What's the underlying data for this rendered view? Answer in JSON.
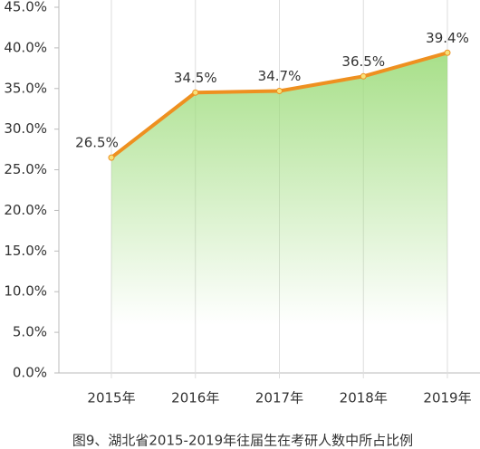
{
  "chart_data": {
    "type": "line",
    "caption": "图9、湖北省2015-2019年往届生在考研人数中所占比例",
    "categories": [
      "2015年",
      "2016年",
      "2017年",
      "2018年",
      "2019年"
    ],
    "values": [
      26.5,
      34.5,
      34.7,
      36.5,
      39.4
    ],
    "value_labels": [
      "26.5%",
      "34.5%",
      "34.7%",
      "36.5%",
      "39.4%"
    ],
    "color": "#ee9020",
    "area_color": "#9edc7c",
    "ylim": [
      0,
      45
    ],
    "yticks": [
      {
        "value": 0,
        "label": "0.0%"
      },
      {
        "value": 5,
        "label": "5.0%"
      },
      {
        "value": 10,
        "label": "10.0%"
      },
      {
        "value": 15,
        "label": "15.0%"
      },
      {
        "value": 20,
        "label": "20.0%"
      },
      {
        "value": 25,
        "label": "25.0%"
      },
      {
        "value": 30,
        "label": "30.0%"
      },
      {
        "value": 35,
        "label": "35.0%"
      },
      {
        "value": 40,
        "label": "40.0%"
      },
      {
        "value": 45,
        "label": "45.0%"
      }
    ]
  }
}
